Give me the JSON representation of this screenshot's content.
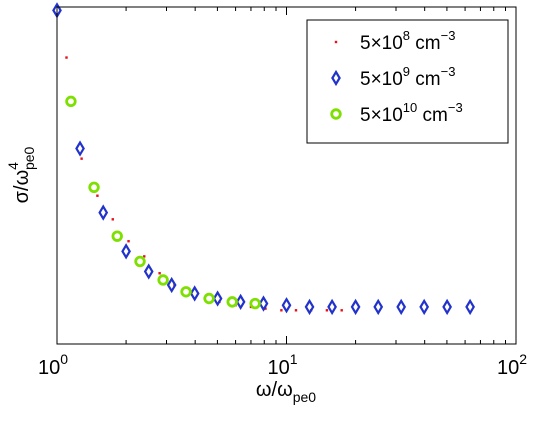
{
  "chart_data": {
    "type": "scatter",
    "title": "",
    "xlabel": "ω/ω",
    "xlabel_sub": "pe0",
    "ylabel": "σ/ω",
    "ylabel_sup": "4",
    "ylabel_sub": "pe0",
    "xscale": "log",
    "xlim": [
      1,
      100
    ],
    "ylim": [
      0,
      1
    ],
    "yticks": "none",
    "x_tick_labels": [
      {
        "value": 1,
        "base": "10",
        "exp": "0"
      },
      {
        "value": 10,
        "base": "10",
        "exp": "1"
      },
      {
        "value": 100,
        "base": "10",
        "exp": "2"
      }
    ],
    "grid": false,
    "legend_position": "top-right",
    "series": [
      {
        "name_base": "5×10",
        "name_exp": "8",
        "name_unit": " cm",
        "name_unit_exp": "−3",
        "marker": "dot",
        "color": "#e8101a",
        "x": [
          1.1,
          1.28,
          1.5,
          1.75,
          2.05,
          2.4,
          2.8,
          3.25,
          3.8,
          4.4,
          5.1,
          6.0,
          7.0,
          8.1,
          9.5,
          11.0,
          12.8,
          15.0,
          17.4
        ],
        "y": [
          0.85,
          0.55,
          0.44,
          0.37,
          0.305,
          0.26,
          0.21,
          0.175,
          0.15,
          0.135,
          0.125,
          0.115,
          0.11,
          0.105,
          0.1,
          0.1,
          0.1,
          0.1,
          0.1
        ]
      },
      {
        "name_base": "5×10",
        "name_exp": "9",
        "name_unit": " cm",
        "name_unit_exp": "−3",
        "marker": "diamond",
        "color": "#2233cc",
        "x": [
          1.0,
          1.26,
          1.59,
          2.0,
          2.51,
          3.16,
          3.98,
          5.01,
          6.31,
          7.94,
          10.0,
          12.6,
          15.8,
          20.0,
          25.1,
          31.6,
          39.8,
          50.1,
          63.1
        ],
        "y": [
          0.99,
          0.58,
          0.39,
          0.275,
          0.215,
          0.175,
          0.15,
          0.135,
          0.125,
          0.12,
          0.115,
          0.11,
          0.11,
          0.11,
          0.11,
          0.11,
          0.11,
          0.11,
          0.11
        ]
      },
      {
        "name_base": "5×10",
        "name_exp": "10",
        "name_unit": " cm",
        "name_unit_exp": "−3",
        "marker": "circle",
        "color": "#7ee000",
        "x": [
          1.15,
          1.45,
          1.83,
          2.3,
          2.9,
          3.65,
          4.6,
          5.8,
          7.3
        ],
        "y": [
          0.72,
          0.465,
          0.32,
          0.245,
          0.19,
          0.155,
          0.135,
          0.125,
          0.12
        ]
      }
    ]
  }
}
